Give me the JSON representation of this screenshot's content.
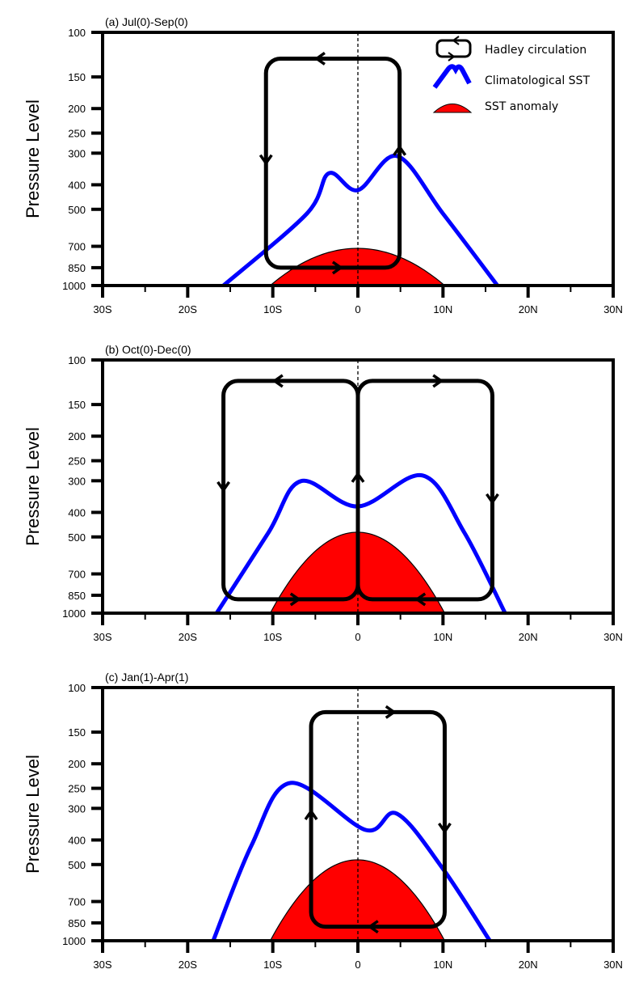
{
  "figure": {
    "legend": {
      "items": [
        {
          "label": "Hadley circulation",
          "symbol": "circulation-loop-icon"
        },
        {
          "label": "Climatological SST",
          "symbol": "double-peak-curve-icon"
        },
        {
          "label": "SST anomaly",
          "symbol": "red-dome-icon"
        }
      ]
    },
    "colors": {
      "sst_clim": "#0000ff",
      "sst_anomaly": "#ff0000",
      "circulation": "#000000",
      "axes": "#000000"
    }
  },
  "chart_data": [
    {
      "type": "line",
      "title": "(a) Jul(0)-Sep(0)",
      "xlabel": "",
      "ylabel": "Pressure Level",
      "xlim": [
        -30,
        30
      ],
      "ylim": [
        1000,
        100
      ],
      "yscale": "log",
      "x_ticks": [
        -30,
        -20,
        -10,
        0,
        10,
        20,
        30
      ],
      "x_tick_labels": [
        "30S",
        "20S",
        "10S",
        "0",
        "10N",
        "20N",
        "30N"
      ],
      "y_ticks": [
        100,
        150,
        200,
        250,
        300,
        400,
        500,
        700,
        850,
        1000
      ],
      "y_tick_labels": [
        "100",
        "150",
        "200",
        "250",
        "300",
        "400",
        "500",
        "700",
        "850",
        "1000"
      ],
      "equator_line": 0,
      "series": [
        {
          "name": "Climatological SST",
          "x": [
            -15.8,
            -6,
            -3.4,
            0,
            4.6,
            10,
            16.4
          ],
          "y": [
            1000,
            520,
            360,
            420,
            308,
            520,
            1000
          ]
        },
        {
          "name": "SST anomaly",
          "x": [
            -10.3,
            -5,
            0,
            5,
            10.2
          ],
          "y": [
            1000,
            790,
            713,
            790,
            1000
          ]
        }
      ],
      "circulation": [
        {
          "x_left": -10.8,
          "x_right": 4.9,
          "p_top": 127,
          "p_bottom": 850,
          "direction": "counterclockwise",
          "arrows": [
            "top-westward",
            "left-downward",
            "bottom-eastward",
            "right-upward"
          ]
        }
      ],
      "legend": "top-right"
    },
    {
      "type": "line",
      "title": "(b) Oct(0)-Dec(0)",
      "xlabel": "",
      "ylabel": "Pressure Level",
      "xlim": [
        -30,
        30
      ],
      "ylim": [
        1000,
        100
      ],
      "yscale": "log",
      "x_ticks": [
        -30,
        -20,
        -10,
        0,
        10,
        20,
        30
      ],
      "x_tick_labels": [
        "30S",
        "20S",
        "10S",
        "0",
        "10N",
        "20N",
        "30N"
      ],
      "y_ticks": [
        100,
        150,
        200,
        250,
        300,
        400,
        500,
        700,
        850,
        1000
      ],
      "y_tick_labels": [
        "100",
        "150",
        "200",
        "250",
        "300",
        "400",
        "500",
        "700",
        "850",
        "1000"
      ],
      "equator_line": 0,
      "series": [
        {
          "name": "Climatological SST",
          "x": [
            -16.6,
            -10.5,
            -6.7,
            0,
            7.6,
            12.5,
            17.3
          ],
          "y": [
            1000,
            480,
            301,
            379,
            286,
            480,
            1000
          ]
        },
        {
          "name": "SST anomaly",
          "x": [
            -10.3,
            -5,
            0,
            5,
            10.2
          ],
          "y": [
            1000,
            620,
            479,
            620,
            1000
          ]
        }
      ],
      "circulation": [
        {
          "x_left": -15.8,
          "x_right": 0,
          "p_top": 121,
          "p_bottom": 882,
          "direction": "counterclockwise",
          "arrows": [
            "top-westward",
            "left-downward",
            "bottom-eastward",
            "right-upward"
          ]
        },
        {
          "x_left": 0,
          "x_right": 15.8,
          "p_top": 121,
          "p_bottom": 882,
          "direction": "clockwise",
          "arrows": [
            "top-eastward",
            "right-downward",
            "bottom-westward"
          ]
        }
      ]
    },
    {
      "type": "line",
      "title": "(c) Jan(1)-Apr(1)",
      "xlabel": "",
      "ylabel": "Pressure Level",
      "xlim": [
        -30,
        30
      ],
      "ylim": [
        1000,
        100
      ],
      "yscale": "log",
      "x_ticks": [
        -30,
        -20,
        -10,
        0,
        10,
        20,
        30
      ],
      "x_tick_labels": [
        "30S",
        "20S",
        "10S",
        "0",
        "10N",
        "20N",
        "30N"
      ],
      "y_ticks": [
        100,
        150,
        200,
        250,
        300,
        400,
        500,
        700,
        850,
        1000
      ],
      "y_tick_labels": [
        "100",
        "150",
        "200",
        "250",
        "300",
        "400",
        "500",
        "700",
        "850",
        "1000"
      ],
      "equator_line": 0,
      "series": [
        {
          "name": "Climatological SST",
          "x": [
            -17,
            -12.5,
            -7.9,
            0.9,
            4.6,
            10,
            15.5
          ],
          "y": [
            1000,
            420,
            238,
            365,
            315,
            520,
            1000
          ]
        },
        {
          "name": "SST anomaly",
          "x": [
            -10.3,
            -5,
            0,
            5,
            10.2
          ],
          "y": [
            1000,
            620,
            479,
            620,
            1000
          ]
        }
      ],
      "circulation": [
        {
          "x_left": -5.5,
          "x_right": 10.2,
          "p_top": 125,
          "p_bottom": 880,
          "direction": "clockwise",
          "arrows": [
            "top-eastward",
            "right-downward",
            "bottom-westward",
            "left-upward"
          ]
        }
      ]
    }
  ]
}
